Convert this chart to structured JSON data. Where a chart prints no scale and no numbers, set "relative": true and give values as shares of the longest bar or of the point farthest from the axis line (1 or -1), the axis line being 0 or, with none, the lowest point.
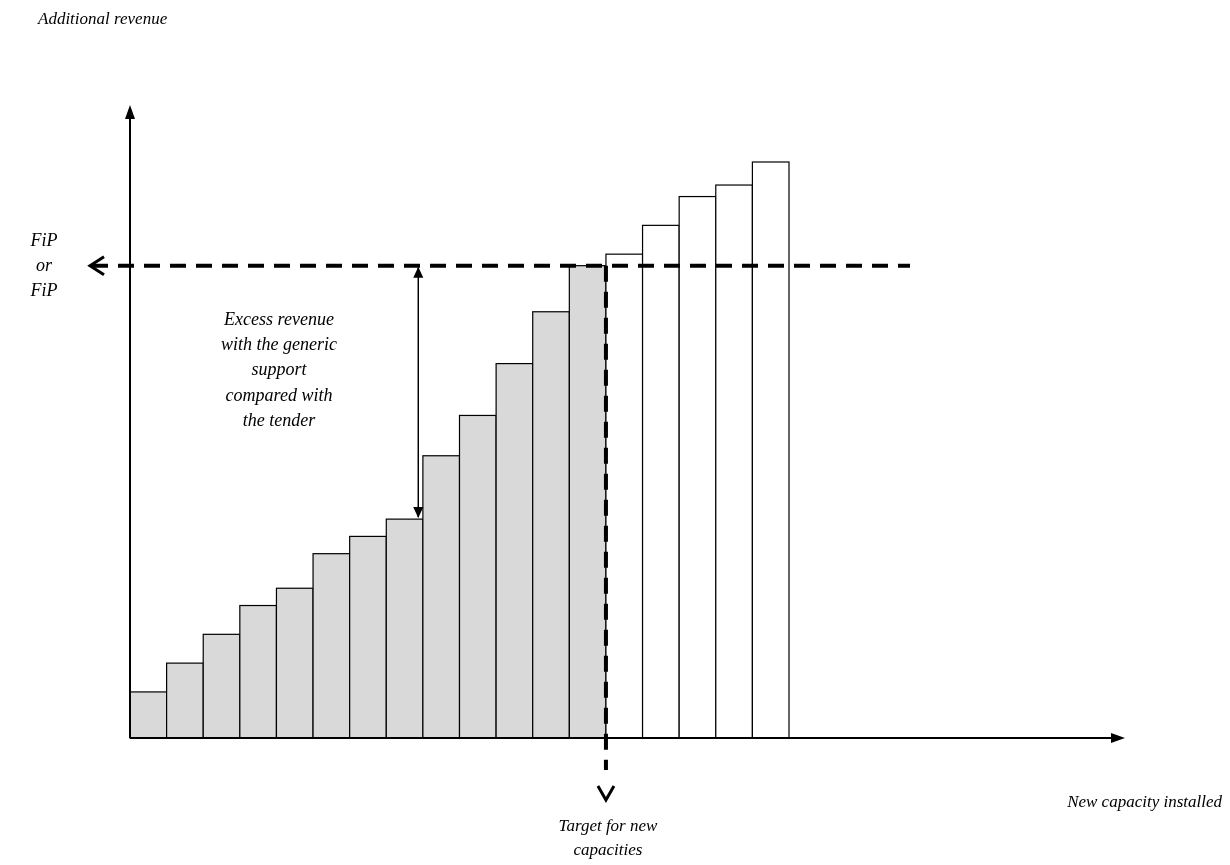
{
  "chart_data": {
    "type": "bar",
    "relative": true,
    "categories": [
      null,
      null,
      null,
      null,
      null,
      null,
      null,
      null,
      null,
      null,
      null,
      null,
      null,
      null,
      null,
      null,
      null,
      null
    ],
    "values": [
      0.08,
      0.13,
      0.18,
      0.23,
      0.26,
      0.32,
      0.35,
      0.38,
      0.49,
      0.56,
      0.65,
      0.74,
      0.82,
      0.84,
      0.89,
      0.94,
      0.96,
      1
    ],
    "colors": [
      "#d9d9d9",
      "#d9d9d9",
      "#d9d9d9",
      "#d9d9d9",
      "#d9d9d9",
      "#d9d9d9",
      "#d9d9d9",
      "#d9d9d9",
      "#d9d9d9",
      "#d9d9d9",
      "#d9d9d9",
      "#d9d9d9",
      "#d9d9d9",
      "#ffffff",
      "#ffffff",
      "#ffffff",
      "#ffffff",
      "#ffffff"
    ],
    "ref_lines": [
      {
        "axis": "y",
        "value": 0.82,
        "label": "FiP\nor\nFiP",
        "line_style": "dashed"
      }
    ],
    "annotations": [
      "Excess revenue\nwith the generic\nsupport\ncompared with\nthe tender",
      "Target for new\ncapacities",
      "Additional revenue",
      "New capacity installed"
    ]
  }
}
